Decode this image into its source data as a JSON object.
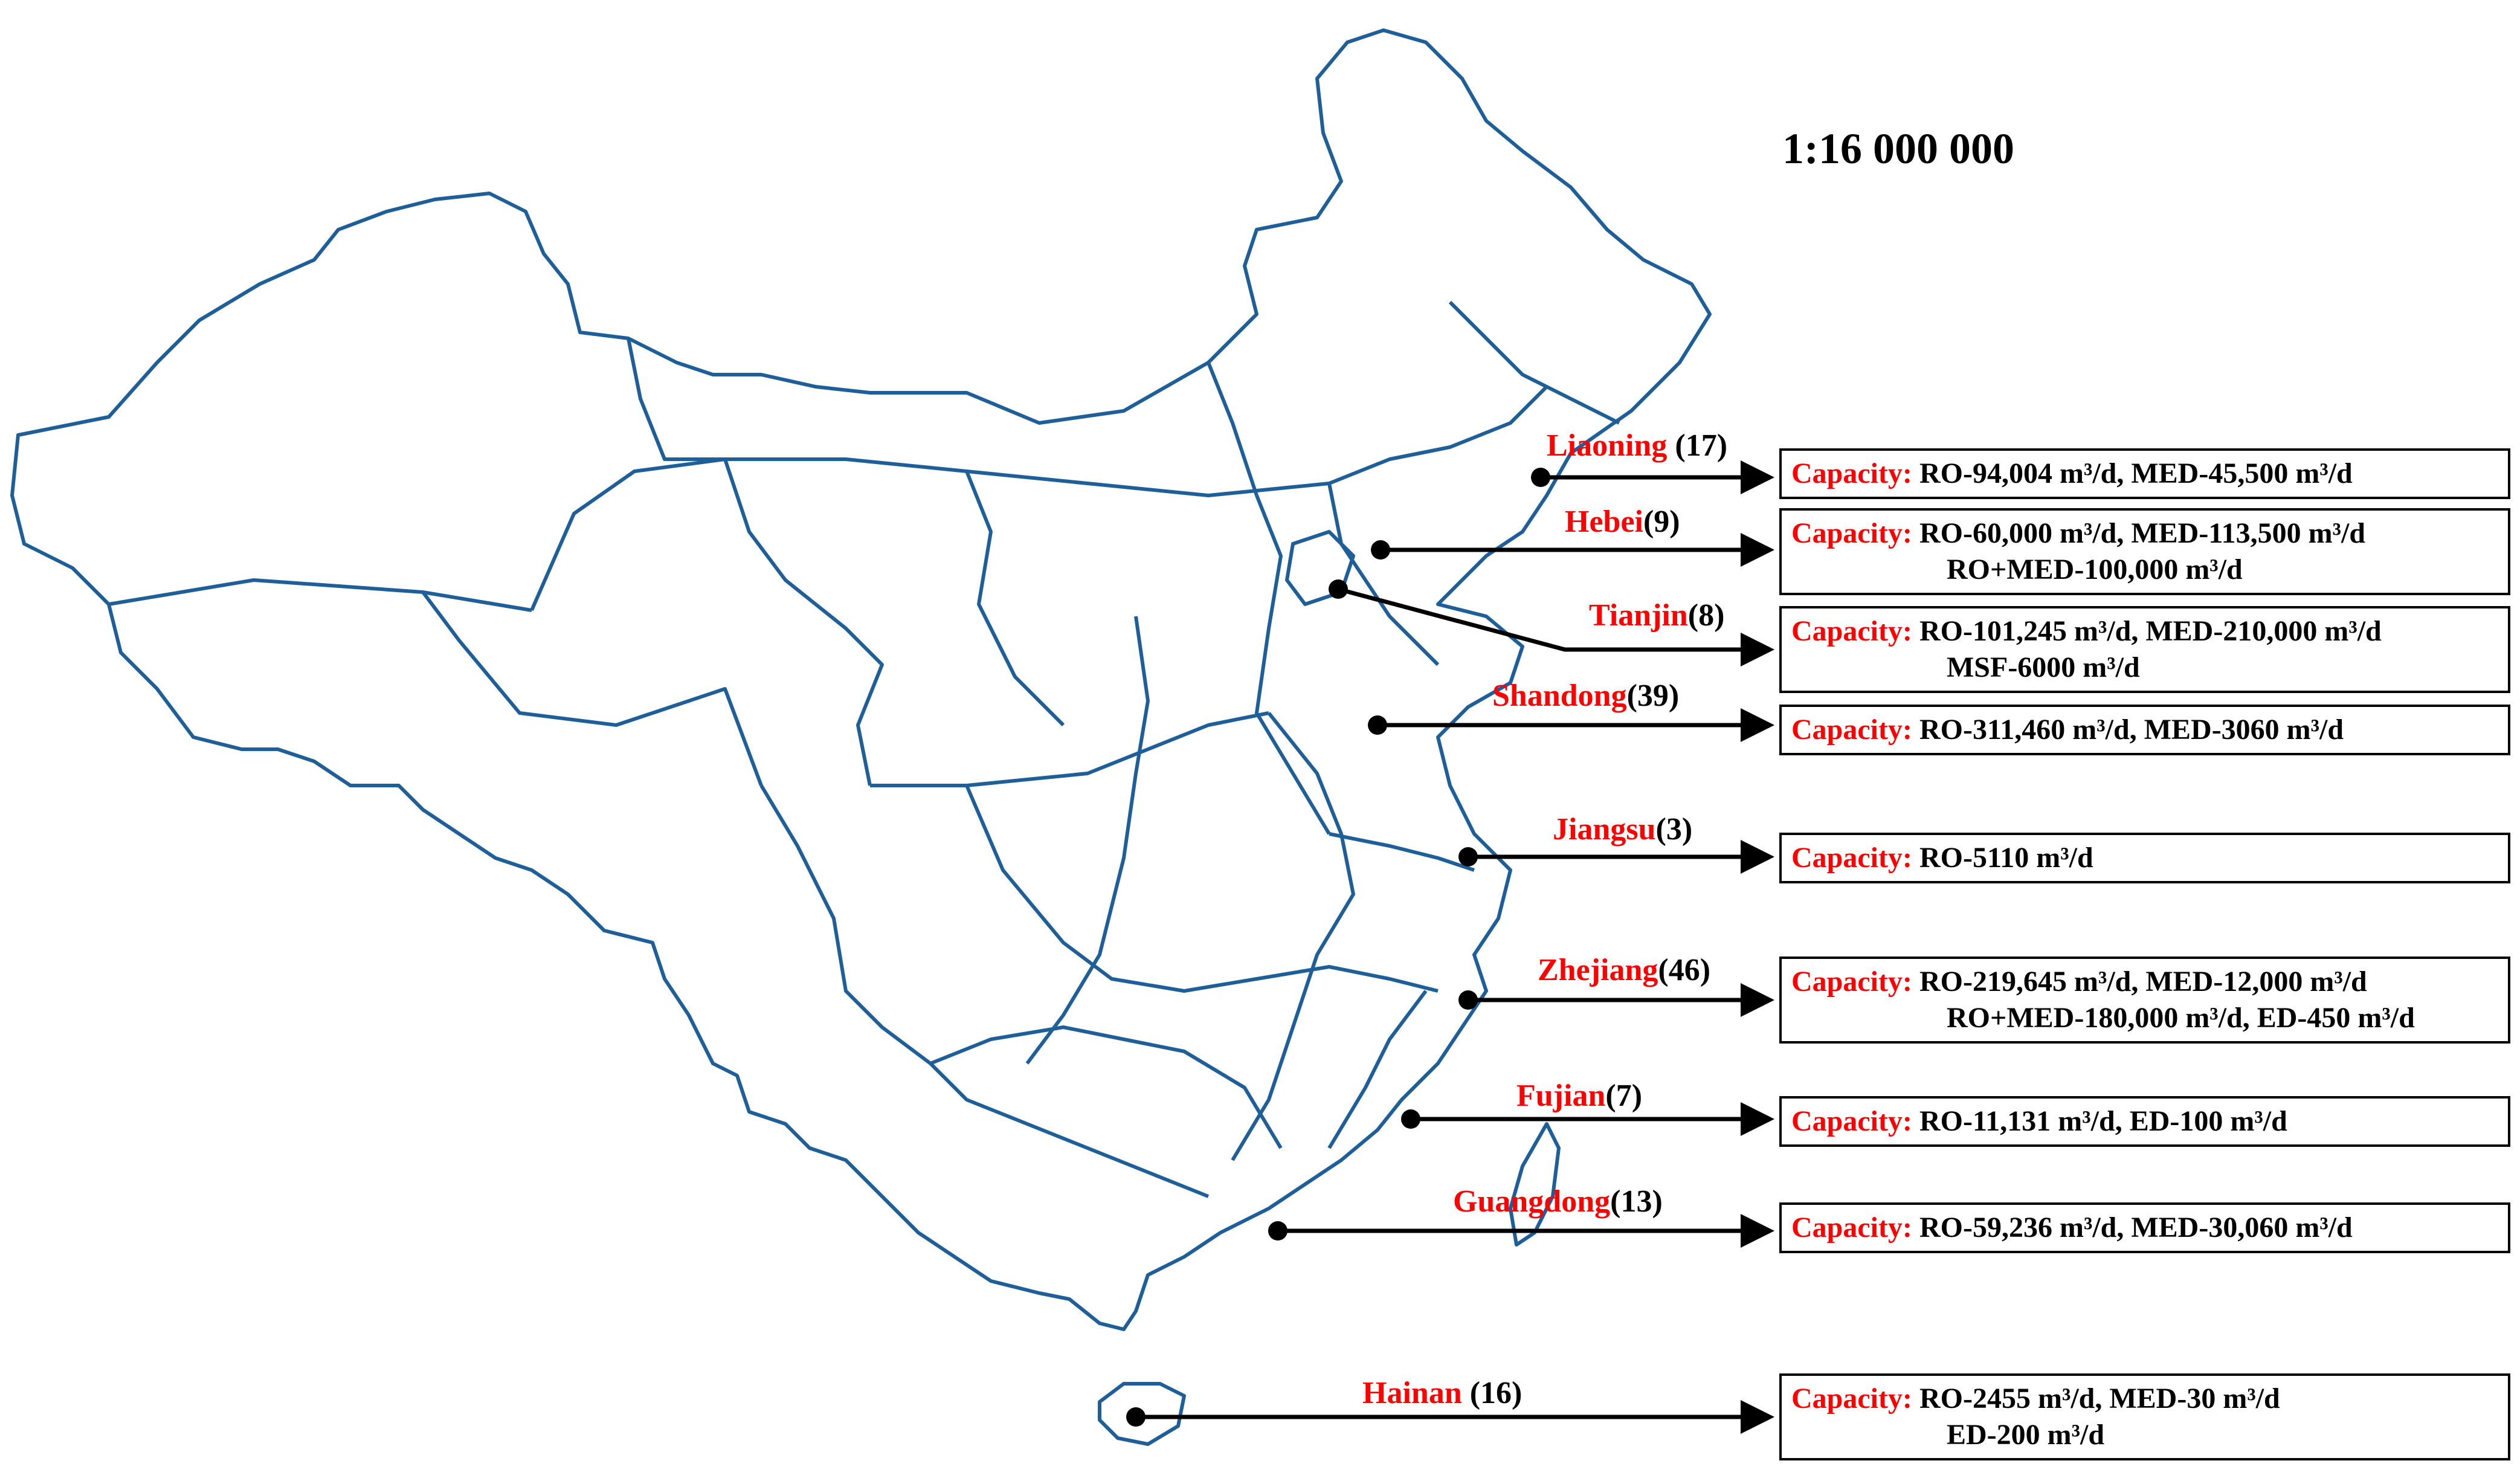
{
  "scale": "1:16 000 000",
  "colors": {
    "boundary": "#1f5f99",
    "name": "#ff0000",
    "text": "#000000"
  },
  "capacity_label": "Capacity:",
  "provinces": [
    {
      "name": "Liaoning",
      "count": " (17)",
      "lines": [
        "RO-94,004 m³/d, MED-45,500 m³/d"
      ]
    },
    {
      "name": "Hebei",
      "count": "(9)",
      "lines": [
        "RO-60,000 m³/d, MED-113,500 m³/d",
        "RO+MED-100,000 m³/d"
      ]
    },
    {
      "name": "Tianjin",
      "count": "(8)",
      "lines": [
        "RO-101,245 m³/d, MED-210,000 m³/d",
        "MSF-6000 m³/d"
      ]
    },
    {
      "name": "Shandong",
      "count": "(39)",
      "lines": [
        "RO-311,460 m³/d, MED-3060 m³/d"
      ]
    },
    {
      "name": "Jiangsu",
      "count": "(3)",
      "lines": [
        "RO-5110 m³/d"
      ]
    },
    {
      "name": "Zhejiang",
      "count": "(46)",
      "lines": [
        "RO-219,645 m³/d, MED-12,000 m³/d",
        "RO+MED-180,000 m³/d, ED-450 m³/d"
      ]
    },
    {
      "name": "Fujian",
      "count": "(7)",
      "lines": [
        "RO-11,131 m³/d, ED-100 m³/d"
      ]
    },
    {
      "name": "Guangdong",
      "count": "(13)",
      "lines": [
        "RO-59,236 m³/d, MED-30,060 m³/d"
      ]
    },
    {
      "name": "Hainan",
      "count": " (16)",
      "lines": [
        "RO-2455 m³/d, MED-30 m³/d",
        "ED-200 m³/d"
      ]
    }
  ]
}
